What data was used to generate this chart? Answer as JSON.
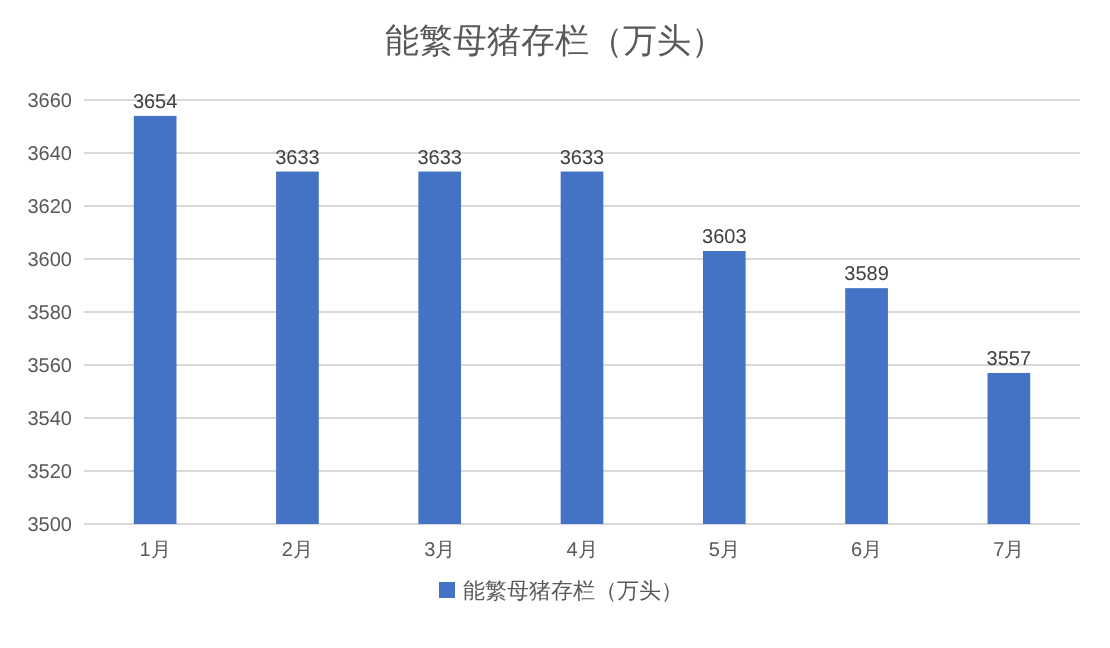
{
  "chart_data": {
    "type": "bar",
    "title": "能繁母猪存栏（万头）",
    "categories": [
      "1月",
      "2月",
      "3月",
      "4月",
      "5月",
      "6月",
      "7月"
    ],
    "series": [
      {
        "name": "能繁母猪存栏（万头）",
        "color": "#4472c4",
        "values": [
          3654,
          3633,
          3633,
          3633,
          3603,
          3589,
          3557
        ]
      }
    ],
    "ylim": [
      3500,
      3660
    ],
    "yticks": [
      3500,
      3520,
      3540,
      3560,
      3580,
      3600,
      3620,
      3640,
      3660
    ],
    "grid": "y",
    "legend": "bottom",
    "data_labels": true
  }
}
